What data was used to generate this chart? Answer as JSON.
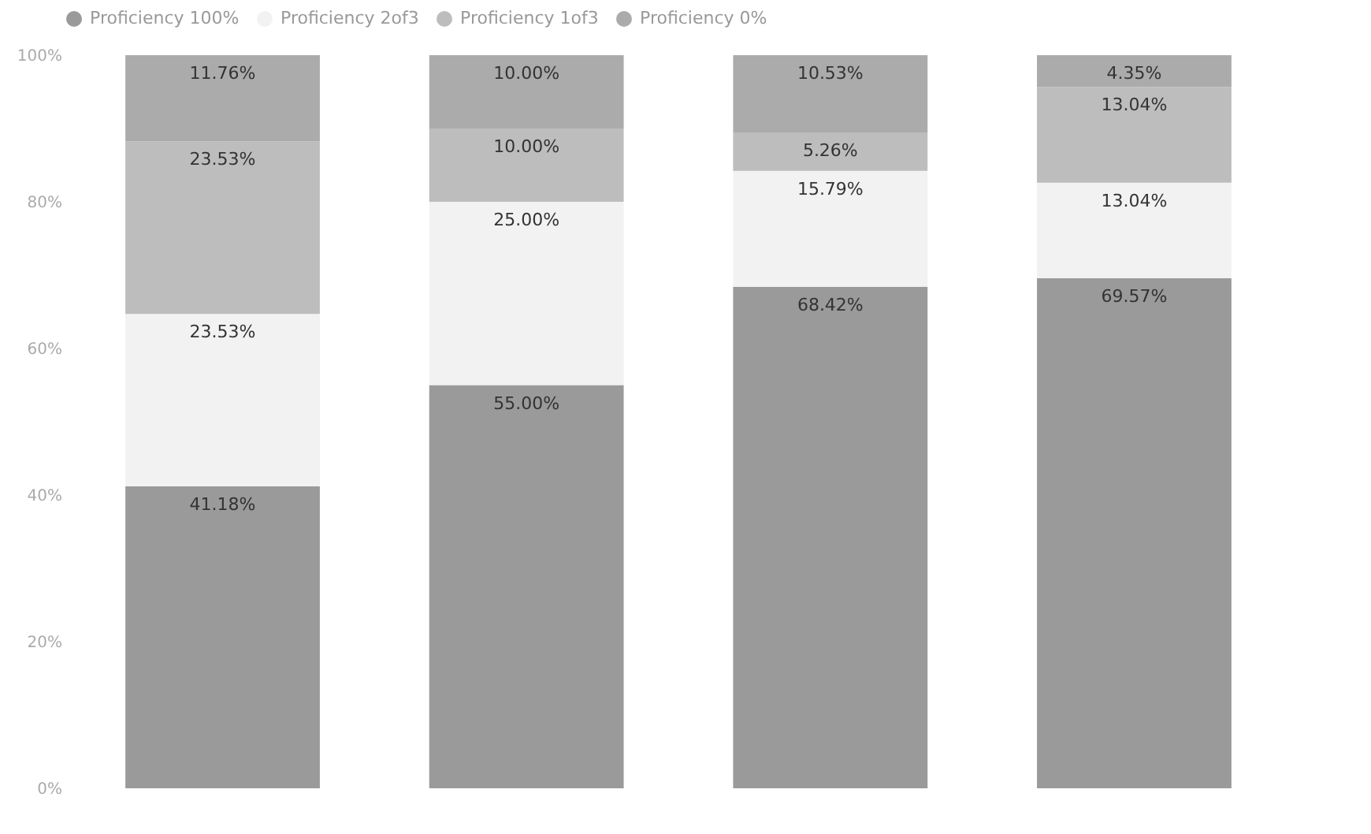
{
  "chart_data": {
    "type": "bar",
    "stacked": true,
    "categories": [
      null,
      null,
      null,
      null
    ],
    "ylim": [
      0,
      100
    ],
    "yticks": [
      {
        "value": 0,
        "label": "0%"
      },
      {
        "value": 20,
        "label": "20%"
      },
      {
        "value": 40,
        "label": "40%"
      },
      {
        "value": 60,
        "label": "60%"
      },
      {
        "value": 80,
        "label": "80%"
      },
      {
        "value": 100,
        "label": "100%"
      }
    ],
    "grid": false,
    "legend": "top",
    "series": [
      {
        "name": "Proficiency 100%",
        "color": "#9a9a9a",
        "values": [
          41.18,
          55.0,
          68.42,
          69.57
        ],
        "value_labels": [
          "41.18%",
          "55.00%",
          "68.42%",
          "69.57%"
        ]
      },
      {
        "name": "Proficiency 2of3",
        "color": "#f2f2f2",
        "values": [
          23.53,
          25.0,
          15.79,
          13.04
        ],
        "value_labels": [
          "23.53%",
          "25.00%",
          "15.79%",
          "13.04%"
        ]
      },
      {
        "name": "Proficiency 1of3",
        "color": "#bdbdbd",
        "values": [
          23.53,
          10.0,
          5.26,
          13.04
        ],
        "value_labels": [
          "23.53%",
          "10.00%",
          "5.26%",
          "13.04%"
        ]
      },
      {
        "name": "Proficiency 0%",
        "color": "#ababab",
        "values": [
          11.76,
          10.0,
          10.53,
          4.35
        ],
        "value_labels": [
          "11.76%",
          "10.00%",
          "10.53%",
          "4.35%"
        ]
      }
    ]
  }
}
